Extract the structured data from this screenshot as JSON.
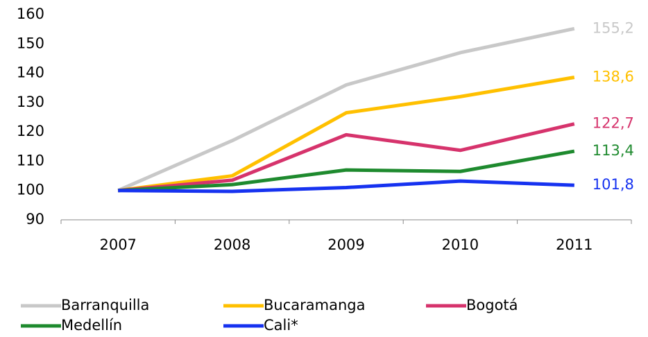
{
  "chart_data": {
    "type": "line",
    "categories": [
      "2007",
      "2008",
      "2009",
      "2010",
      "2011"
    ],
    "series": [
      {
        "name": "Barranquilla",
        "color": "#c8c8c8",
        "values": [
          100,
          117,
          136,
          147,
          155.2
        ],
        "value_labels": [
          null,
          null,
          null,
          null,
          "155,2"
        ]
      },
      {
        "name": "Bucaramanga",
        "color": "#ffc000",
        "values": [
          100,
          105,
          126.5,
          132,
          138.6
        ],
        "value_labels": [
          null,
          null,
          null,
          null,
          "138,6"
        ]
      },
      {
        "name": "Bogotá",
        "color": "#d6336c",
        "values": [
          100,
          103.5,
          119,
          113.7,
          122.7
        ],
        "value_labels": [
          null,
          null,
          null,
          null,
          "122,7"
        ]
      },
      {
        "name": "Medellín",
        "color": "#1e8a2e",
        "values": [
          100,
          102,
          107,
          106.5,
          113.4
        ],
        "value_labels": [
          null,
          null,
          null,
          null,
          "113,4"
        ]
      },
      {
        "name": "Cali*",
        "color": "#1632f0",
        "values": [
          100,
          99.7,
          101,
          103.2,
          101.8
        ],
        "value_labels": [
          null,
          null,
          null,
          null,
          "101,8"
        ]
      }
    ],
    "ylim": [
      90,
      160
    ],
    "yticks": [
      90,
      100,
      110,
      120,
      130,
      140,
      150,
      160
    ],
    "grid": false
  }
}
